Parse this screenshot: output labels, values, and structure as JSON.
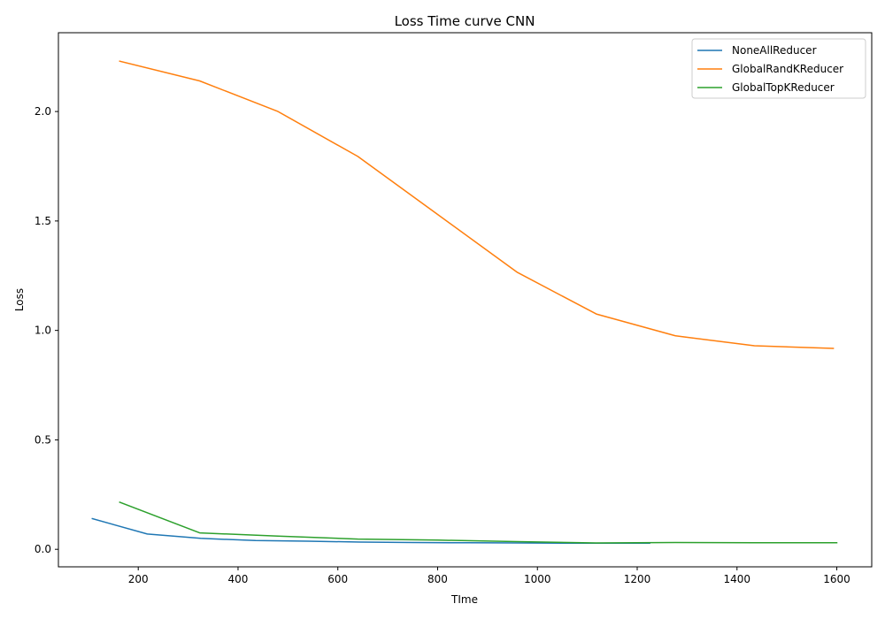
{
  "chart_data": {
    "type": "line",
    "title": "Loss Time curve CNN",
    "xlabel": "TIme",
    "ylabel": "Loss",
    "xlim": [
      40,
      1670
    ],
    "ylim": [
      -0.08,
      2.36
    ],
    "xticks": [
      200,
      400,
      600,
      800,
      1000,
      1200,
      1400,
      1600
    ],
    "yticks": [
      0.0,
      0.5,
      1.0,
      1.5,
      2.0
    ],
    "xtick_labels": [
      "200",
      "400",
      "600",
      "800",
      "1000",
      "1200",
      "1400",
      "1600"
    ],
    "ytick_labels": [
      "0.0",
      "0.5",
      "1.0",
      "1.5",
      "2.0"
    ],
    "grid": false,
    "legend_position": "top-right",
    "series": [
      {
        "name": "NoneAllReducer",
        "color": "#1f77b4",
        "x": [
          108,
          218,
          325,
          435,
          540,
          645,
          750,
          860,
          965,
          1075,
          1225
        ],
        "y": [
          0.14,
          0.07,
          0.05,
          0.04,
          0.037,
          0.033,
          0.031,
          0.03,
          0.029,
          0.028,
          0.028
        ]
      },
      {
        "name": "GlobalRandKReducer",
        "color": "#ff7f0e",
        "x": [
          163,
          323,
          480,
          640,
          800,
          960,
          1118,
          1277,
          1435,
          1593
        ],
        "y": [
          2.23,
          2.14,
          2.0,
          1.795,
          1.53,
          1.265,
          1.075,
          0.975,
          0.93,
          0.918
        ]
      },
      {
        "name": "GlobalTopKReducer",
        "color": "#2ca02c",
        "x": [
          163,
          323,
          480,
          640,
          800,
          960,
          1118,
          1277,
          1435,
          1600
        ],
        "y": [
          0.215,
          0.075,
          0.06,
          0.047,
          0.042,
          0.035,
          0.029,
          0.031,
          0.03,
          0.03
        ]
      }
    ]
  }
}
